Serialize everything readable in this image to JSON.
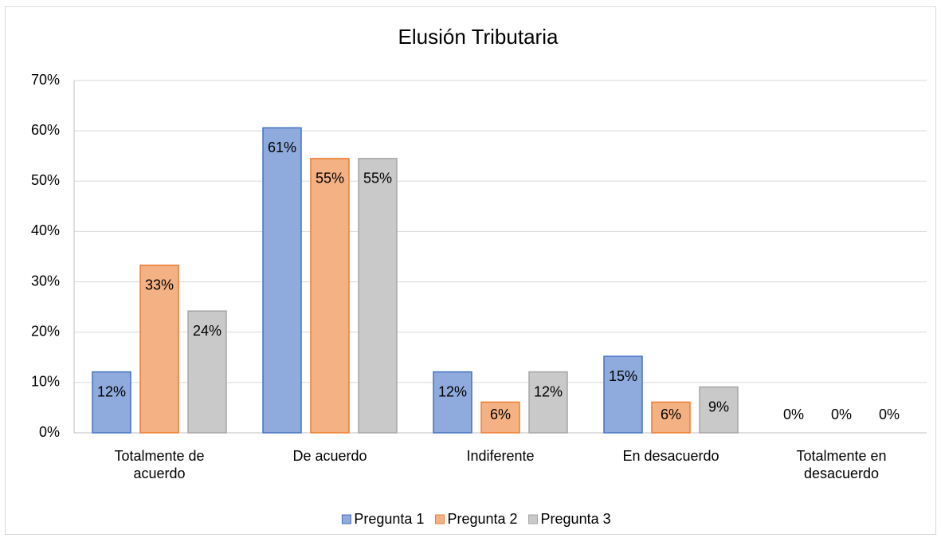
{
  "chart_data": {
    "type": "bar",
    "title": "Elusión Tributaria",
    "categories": [
      "Totalmente de acuerdo",
      "De acuerdo",
      "Indiferente",
      "En desacuerdo",
      "Totalmente en desacuerdo"
    ],
    "series": [
      {
        "name": "Pregunta 1",
        "color": "#8faadc",
        "values": [
          12.1,
          60.6,
          12.1,
          15.2,
          0
        ],
        "value_labels": [
          "12%",
          "61%",
          "12%",
          "15%",
          "0%"
        ]
      },
      {
        "name": "Pregunta 2",
        "color": "#f4b183",
        "values": [
          33.3,
          54.5,
          6.1,
          6.1,
          0
        ],
        "value_labels": [
          "33%",
          "55%",
          "6%",
          "6%",
          "0%"
        ]
      },
      {
        "name": "Pregunta 3",
        "color": "#c9c9c9",
        "values": [
          24.2,
          54.5,
          12.1,
          9.1,
          0
        ],
        "value_labels": [
          "24%",
          "55%",
          "12%",
          "9%",
          "0%"
        ]
      }
    ],
    "ylim": [
      0,
      70
    ],
    "yticks": [
      {
        "value": 0,
        "label": "0%"
      },
      {
        "value": 10,
        "label": "10%"
      },
      {
        "value": 20,
        "label": "20%"
      },
      {
        "value": 30,
        "label": "30%"
      },
      {
        "value": 40,
        "label": "40%"
      },
      {
        "value": 50,
        "label": "50%"
      },
      {
        "value": 60,
        "label": "60%"
      },
      {
        "value": 70,
        "label": "70%"
      }
    ],
    "grid": true,
    "legend": "bottom"
  }
}
